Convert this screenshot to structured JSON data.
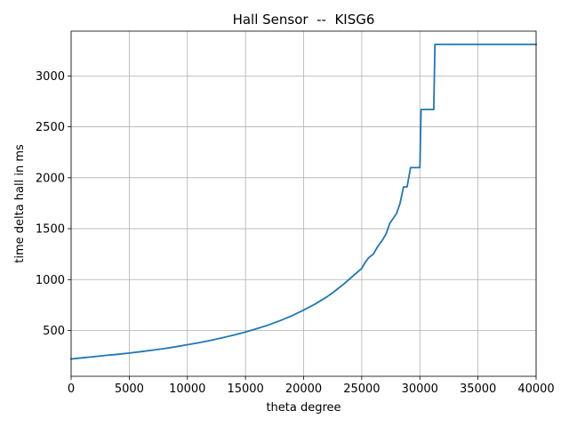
{
  "chart_data": {
    "type": "line",
    "title": "Hall Sensor  --  KISG6",
    "xlabel": "theta degree",
    "ylabel": "time delta hall in ms",
    "xlim": [
      0,
      40000
    ],
    "ylim": [
      50,
      3440
    ],
    "xticks": [
      0,
      5000,
      10000,
      15000,
      20000,
      25000,
      30000,
      35000,
      40000
    ],
    "yticks": [
      500,
      1000,
      1500,
      2000,
      2500,
      3000
    ],
    "grid": true,
    "series": [
      {
        "color": "#1f77b4",
        "x": [
          0,
          1000,
          2000,
          3000,
          4000,
          5000,
          6000,
          7000,
          8000,
          9000,
          10000,
          11000,
          12000,
          13000,
          14000,
          15000,
          16000,
          17000,
          18000,
          19000,
          20000,
          20500,
          21000,
          21500,
          22000,
          22500,
          23000,
          23500,
          24000,
          24500,
          25000,
          25300,
          25600,
          26000,
          26400,
          26800,
          27100,
          27400,
          27700,
          28000,
          28300,
          28600,
          28900,
          29200,
          29500,
          30000,
          30100,
          30400,
          31200,
          31300,
          40000
        ],
        "y": [
          220,
          232,
          243,
          255,
          266,
          278,
          292,
          307,
          322,
          340,
          360,
          380,
          403,
          428,
          455,
          485,
          518,
          555,
          598,
          645,
          700,
          730,
          760,
          795,
          830,
          870,
          915,
          960,
          1010,
          1060,
          1110,
          1170,
          1215,
          1250,
          1330,
          1390,
          1450,
          1550,
          1600,
          1650,
          1750,
          1910,
          1910,
          2100,
          2100,
          2100,
          2670,
          2670,
          2670,
          3310,
          3310
        ]
      }
    ]
  }
}
